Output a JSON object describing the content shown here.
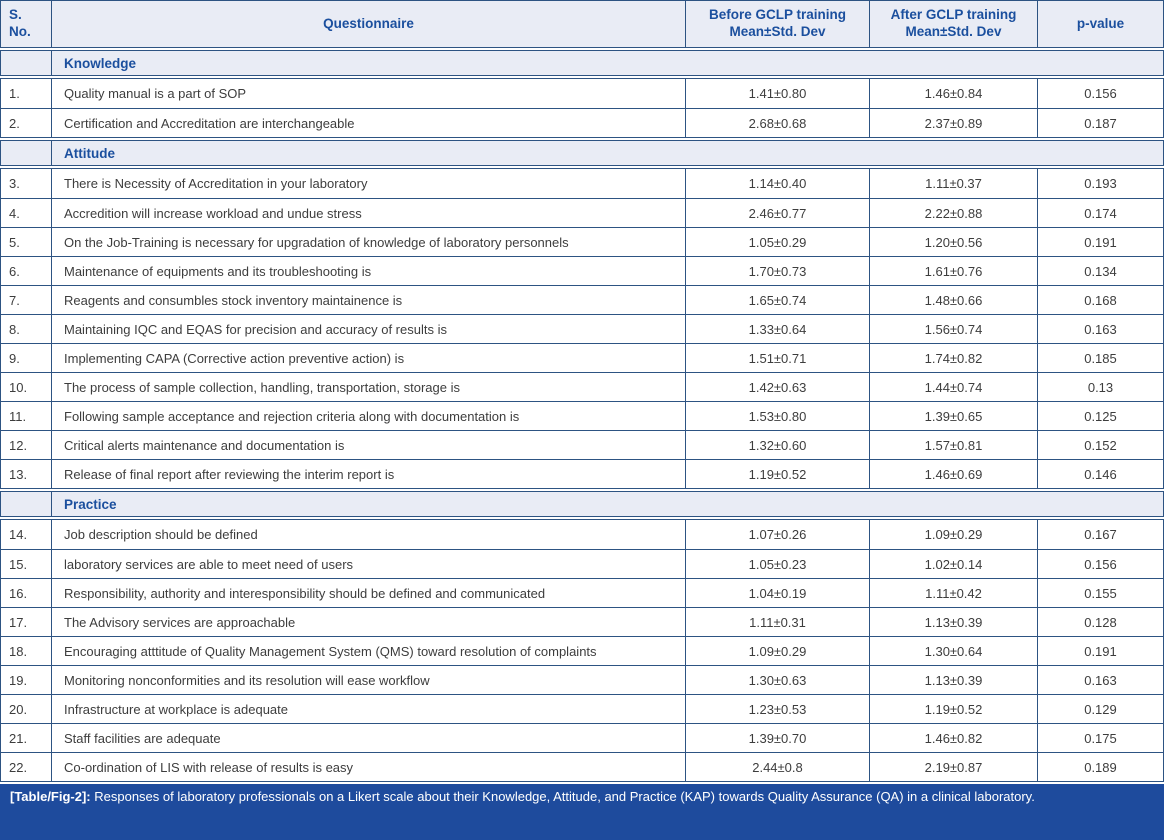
{
  "table": {
    "headers": {
      "sno": "S.\nNo.",
      "questionnaire": "Questionnaire",
      "before": "Before GCLP training\nMean±Std. Dev",
      "after": "After GCLP training\nMean±Std. Dev",
      "pvalue": "p-value"
    },
    "sections": [
      {
        "title": "Knowledge",
        "rows": [
          {
            "no": "1.",
            "q": "Quality manual is a part of SOP",
            "before": "1.41±0.80",
            "after": "1.46±0.84",
            "p": "0.156"
          },
          {
            "no": "2.",
            "q": "Certification and Accreditation are interchangeable",
            "before": "2.68±0.68",
            "after": "2.37±0.89",
            "p": "0.187"
          }
        ]
      },
      {
        "title": "Attitude",
        "rows": [
          {
            "no": "3.",
            "q": "There is Necessity of Accreditation in your laboratory",
            "before": "1.14±0.40",
            "after": "1.11±0.37",
            "p": "0.193"
          },
          {
            "no": "4.",
            "q": "Accredition will increase workload and undue stress",
            "before": "2.46±0.77",
            "after": "2.22±0.88",
            "p": "0.174"
          },
          {
            "no": "5.",
            "q": "On the Job-Training is necessary for upgradation of knowledge of laboratory personnels",
            "before": "1.05±0.29",
            "after": "1.20±0.56",
            "p": "0.191"
          },
          {
            "no": "6.",
            "q": "Maintenance of equipments and its troubleshooting is",
            "before": "1.70±0.73",
            "after": "1.61±0.76",
            "p": "0.134"
          },
          {
            "no": "7.",
            "q": "Reagents and consumbles stock inventory maintainence is",
            "before": "1.65±0.74",
            "after": "1.48±0.66",
            "p": "0.168"
          },
          {
            "no": "8.",
            "q": "Maintaining IQC and EQAS for precision and accuracy of results is",
            "before": "1.33±0.64",
            "after": "1.56±0.74",
            "p": "0.163"
          },
          {
            "no": "9.",
            "q": "Implementing CAPA (Corrective action preventive action) is",
            "before": "1.51±0.71",
            "after": "1.74±0.82",
            "p": "0.185"
          },
          {
            "no": "10.",
            "q": "The process of sample collection, handling, transportation, storage is",
            "before": "1.42±0.63",
            "after": "1.44±0.74",
            "p": "0.13"
          },
          {
            "no": "11.",
            "q": "Following sample acceptance and rejection criteria along with documentation is",
            "before": "1.53±0.80",
            "after": "1.39±0.65",
            "p": "0.125"
          },
          {
            "no": "12.",
            "q": "Critical alerts maintenance and documentation is",
            "before": "1.32±0.60",
            "after": "1.57±0.81",
            "p": "0.152"
          },
          {
            "no": "13.",
            "q": "Release of final report after reviewing the interim report is",
            "before": "1.19±0.52",
            "after": "1.46±0.69",
            "p": "0.146"
          }
        ]
      },
      {
        "title": "Practice",
        "rows": [
          {
            "no": "14.",
            "q": "Job description should be defined",
            "before": "1.07±0.26",
            "after": "1.09±0.29",
            "p": "0.167"
          },
          {
            "no": "15.",
            "q": "laboratory services are able to meet need of users",
            "before": "1.05±0.23",
            "after": "1.02±0.14",
            "p": "0.156"
          },
          {
            "no": "16.",
            "q": "Responsibility, authority and interesponsibility should be defined and communicated",
            "before": "1.04±0.19",
            "after": "1.11±0.42",
            "p": "0.155"
          },
          {
            "no": "17.",
            "q": "The Advisory services are approachable",
            "before": "1.11±0.31",
            "after": "1.13±0.39",
            "p": "0.128"
          },
          {
            "no": "18.",
            "q": "Encouraging atttitude of Quality Management System (QMS) toward resolution of complaints",
            "before": "1.09±0.29",
            "after": "1.30±0.64",
            "p": "0.191"
          },
          {
            "no": "19.",
            "q": "Monitoring nonconformities and its resolution will ease workflow",
            "before": "1.30±0.63",
            "after": "1.13±0.39",
            "p": "0.163"
          },
          {
            "no": "20.",
            "q": "Infrastructure at workplace is adequate",
            "before": "1.23±0.53",
            "after": "1.19±0.52",
            "p": "0.129"
          },
          {
            "no": "21.",
            "q": "Staff facilities are adequate",
            "before": "1.39±0.70",
            "after": "1.46±0.82",
            "p": "0.175"
          },
          {
            "no": "22.",
            "q": "Co-ordination of LIS with release of results is easy",
            "before": "2.44±0.8",
            "after": "2.19±0.87",
            "p": "0.189"
          }
        ]
      }
    ],
    "caption": {
      "label": "[Table/Fig-2]:",
      "text": " Responses of laboratory professionals on a Likert scale about their Knowledge, Attitude, and Practice (KAP) towards Quality Assurance (QA) in a clinical laboratory."
    },
    "colors": {
      "border": "#2d5382",
      "header_bg": "#e9ecf5",
      "header_text": "#1b4f9e",
      "caption_bg": "#1e4b9d"
    }
  }
}
